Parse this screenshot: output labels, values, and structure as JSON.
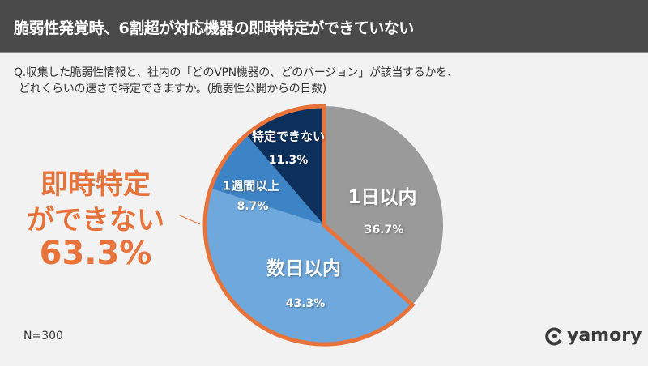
{
  "header": {
    "title": "脆弱性発覚時、6割超が対応機器の即時特定ができていない"
  },
  "question": {
    "line1": "Q.収集した脆弱性情報と、社内の「どのVPN機器の、どのバージョン」が該当するかを、",
    "line2": "どれくらいの速さで特定できますか。(脆弱性公開からの日数)"
  },
  "callout": {
    "line1": "即時特定",
    "line2": "ができない",
    "value": "63.3%"
  },
  "footnote": "N=300",
  "logo": {
    "text": "yamory"
  },
  "chart_data": {
    "type": "pie",
    "start": "top",
    "direction": "clockwise",
    "categories": [
      "1日以内",
      "数日以内",
      "1週間以上",
      "特定できない"
    ],
    "values": [
      36.7,
      43.3,
      8.7,
      11.3
    ],
    "labels": [
      "36.7%",
      "43.3%",
      "8.7%",
      "11.3%"
    ],
    "colors": [
      "#9a9a9a",
      "#6fa8dc",
      "#3d84c6",
      "#0d2f5c"
    ],
    "highlight": {
      "categories": [
        "数日以内",
        "1週間以上",
        "特定できない"
      ],
      "total": 63.3,
      "color": "#e8733a"
    }
  }
}
